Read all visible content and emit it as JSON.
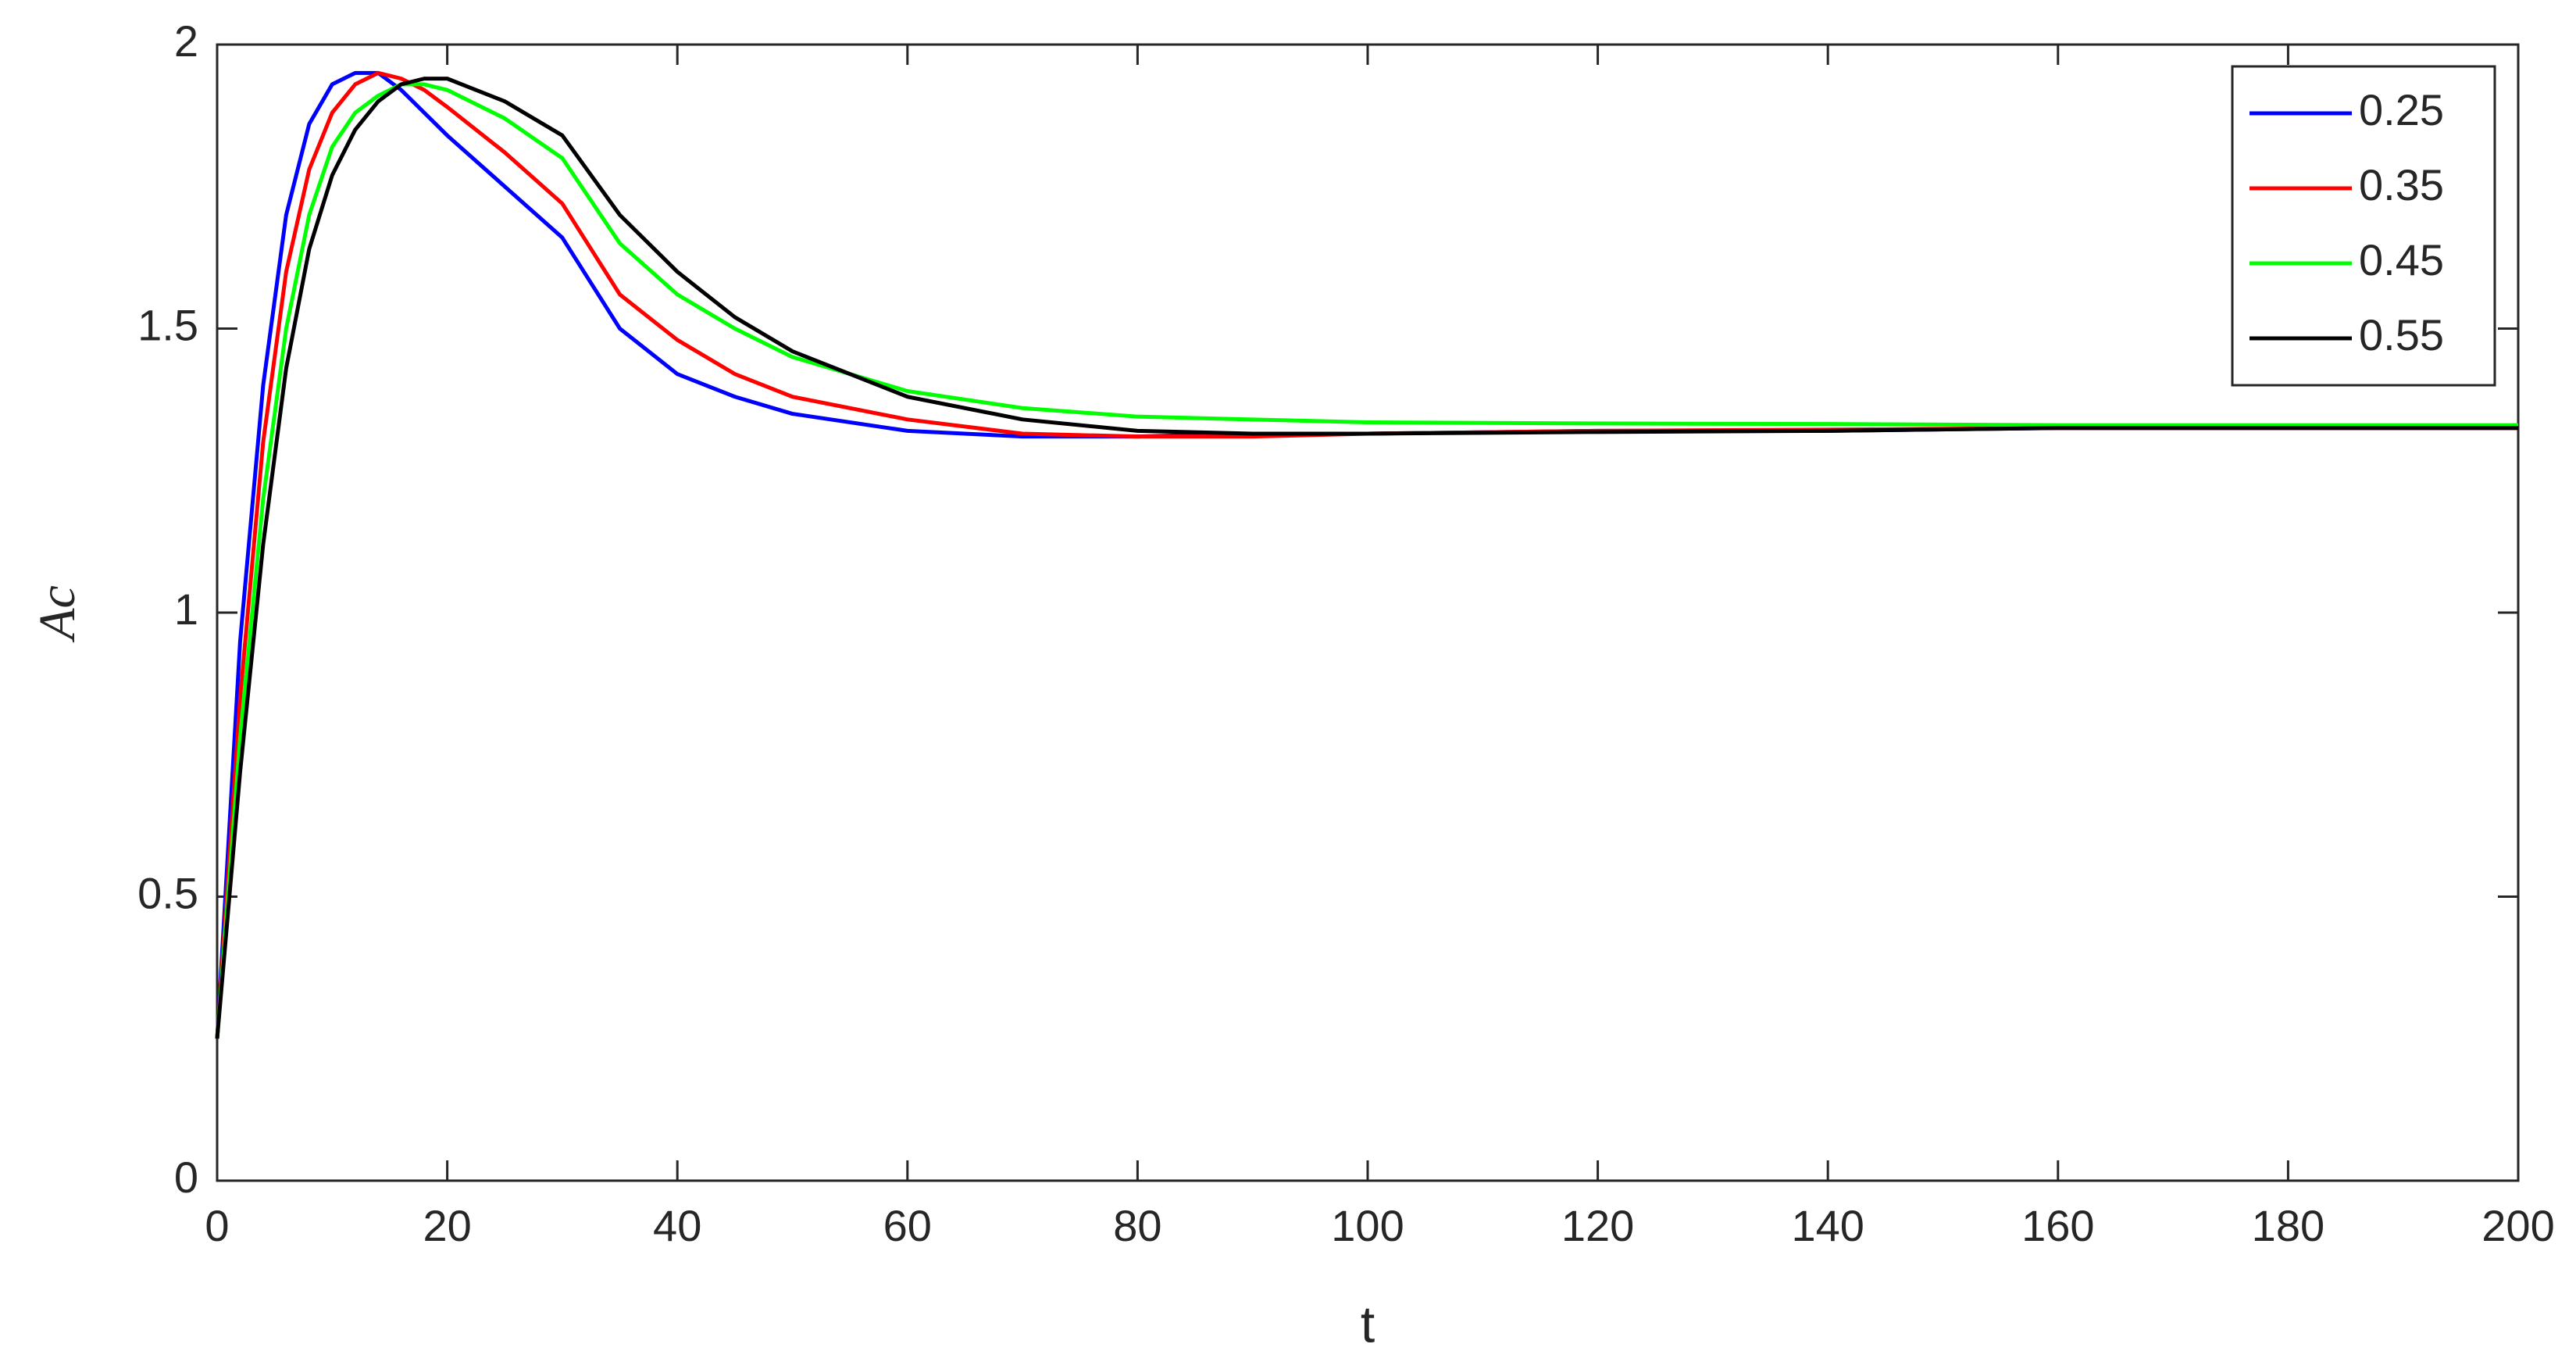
{
  "chart_data": {
    "type": "line",
    "x_label": "t",
    "y_label": "Ac",
    "x": [
      0,
      2,
      4,
      6,
      8,
      10,
      12,
      14,
      16,
      18,
      20,
      25,
      30,
      35,
      40,
      45,
      50,
      60,
      70,
      80,
      90,
      100,
      120,
      140,
      160,
      180,
      200
    ],
    "series": [
      {
        "name": "0.25",
        "color": "#0000ff",
        "values": [
          0.25,
          0.95,
          1.4,
          1.7,
          1.86,
          1.93,
          1.95,
          1.95,
          1.92,
          1.88,
          1.84,
          1.75,
          1.66,
          1.5,
          1.42,
          1.38,
          1.35,
          1.32,
          1.31,
          1.31,
          1.315,
          1.315,
          1.32,
          1.32,
          1.325,
          1.325,
          1.325
        ]
      },
      {
        "name": "0.35",
        "color": "#ff0000",
        "values": [
          0.25,
          0.85,
          1.3,
          1.6,
          1.78,
          1.88,
          1.93,
          1.95,
          1.94,
          1.92,
          1.89,
          1.81,
          1.72,
          1.56,
          1.48,
          1.42,
          1.38,
          1.34,
          1.315,
          1.31,
          1.31,
          1.315,
          1.32,
          1.322,
          1.325,
          1.325,
          1.325
        ]
      },
      {
        "name": "0.45",
        "color": "#00ff00",
        "values": [
          0.25,
          0.78,
          1.2,
          1.5,
          1.7,
          1.82,
          1.88,
          1.91,
          1.93,
          1.93,
          1.92,
          1.87,
          1.8,
          1.65,
          1.56,
          1.5,
          1.45,
          1.39,
          1.36,
          1.345,
          1.34,
          1.335,
          1.333,
          1.332,
          1.33,
          1.33,
          1.33
        ]
      },
      {
        "name": "0.55",
        "color": "#000000",
        "values": [
          0.25,
          0.72,
          1.12,
          1.43,
          1.64,
          1.77,
          1.85,
          1.9,
          1.93,
          1.94,
          1.94,
          1.9,
          1.84,
          1.7,
          1.6,
          1.52,
          1.46,
          1.38,
          1.34,
          1.32,
          1.315,
          1.315,
          1.318,
          1.32,
          1.325,
          1.325,
          1.325
        ]
      }
    ],
    "xlim": [
      0,
      200
    ],
    "xticks": [
      0,
      20,
      40,
      60,
      80,
      100,
      120,
      140,
      160,
      180,
      200
    ],
    "ylim": [
      0,
      2
    ],
    "yticks": [
      0,
      0.5,
      1,
      1.5,
      2
    ],
    "legend": "upper right",
    "grid": false
  }
}
